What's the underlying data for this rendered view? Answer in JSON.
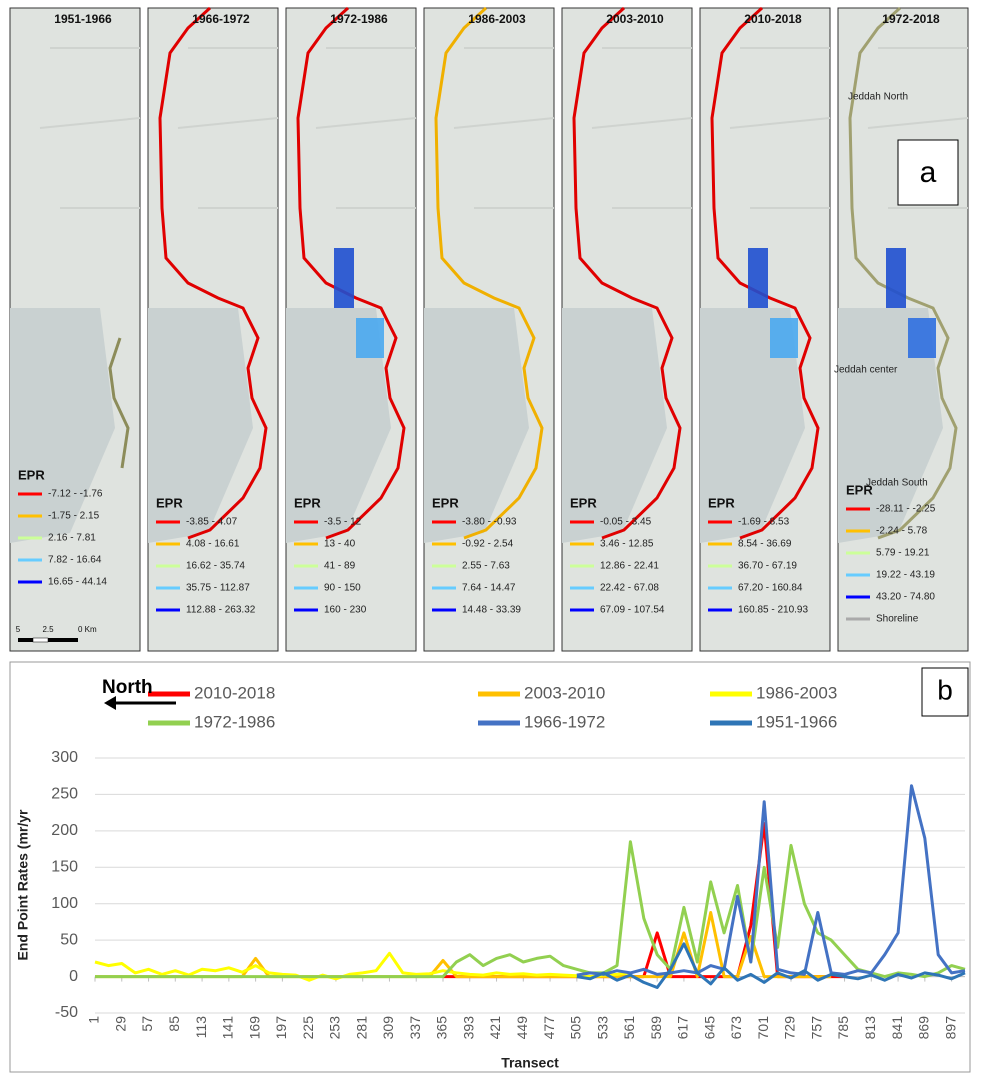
{
  "panel_a": {
    "label": "a",
    "maps": [
      {
        "title": "1951-1966",
        "legend_title": "EPR",
        "legend": [
          {
            "label": "-7.12 - -1.76",
            "color": "#ff0000"
          },
          {
            "label": "-1.75 - 2.15",
            "color": "#ffc000"
          },
          {
            "label": "2.16 - 7.81",
            "color": "#ccff99"
          },
          {
            "label": "7.82 - 16.64",
            "color": "#66ccff"
          },
          {
            "label": "16.65 - 44.14",
            "color": "#0000ff"
          }
        ],
        "scale": [
          "5",
          "2.5",
          "0 Km"
        ]
      },
      {
        "title": "1966-1972",
        "legend_title": "EPR",
        "legend": [
          {
            "label": "-3.85 - 4.07",
            "color": "#ff0000"
          },
          {
            "label": "4.08 - 16.61",
            "color": "#ffc000"
          },
          {
            "label": "16.62 - 35.74",
            "color": "#ccff99"
          },
          {
            "label": "35.75 - 112.87",
            "color": "#66ccff"
          },
          {
            "label": "112.88 - 263.32",
            "color": "#0000ff"
          }
        ]
      },
      {
        "title": "1972-1986",
        "legend_title": "EPR",
        "legend": [
          {
            "label": "-3.5 - 12",
            "color": "#ff0000"
          },
          {
            "label": "13 - 40",
            "color": "#ffc000"
          },
          {
            "label": "41 - 89",
            "color": "#ccff99"
          },
          {
            "label": "90 - 150",
            "color": "#66ccff"
          },
          {
            "label": "160 - 230",
            "color": "#0000ff"
          }
        ]
      },
      {
        "title": "1986-2003",
        "legend_title": "EPR",
        "legend": [
          {
            "label": "-3.80 - -0.93",
            "color": "#ff0000"
          },
          {
            "label": "-0.92 - 2.54",
            "color": "#ffc000"
          },
          {
            "label": "2.55 - 7.63",
            "color": "#ccff99"
          },
          {
            "label": "7.64 - 14.47",
            "color": "#66ccff"
          },
          {
            "label": "14.48 - 33.39",
            "color": "#0000ff"
          }
        ]
      },
      {
        "title": "2003-2010",
        "legend_title": "EPR",
        "legend": [
          {
            "label": "-0.05 - 3.45",
            "color": "#ff0000"
          },
          {
            "label": "3.46 - 12.85",
            "color": "#ffc000"
          },
          {
            "label": "12.86 - 22.41",
            "color": "#ccff99"
          },
          {
            "label": "22.42 - 67.08",
            "color": "#66ccff"
          },
          {
            "label": "67.09 - 107.54",
            "color": "#0000ff"
          }
        ]
      },
      {
        "title": "2010-2018",
        "legend_title": "EPR",
        "legend": [
          {
            "label": "-1.69 - 8.53",
            "color": "#ff0000"
          },
          {
            "label": "8.54 - 36.69",
            "color": "#ffc000"
          },
          {
            "label": "36.70 - 67.19",
            "color": "#ccff99"
          },
          {
            "label": "67.20 - 160.84",
            "color": "#66ccff"
          },
          {
            "label": "160.85 - 210.93",
            "color": "#0000ff"
          }
        ]
      },
      {
        "title": "1972-2018",
        "legend_title": "EPR",
        "legend": [
          {
            "label": "-28.11 - -2.25",
            "color": "#ff0000"
          },
          {
            "label": "-2.24 - 5.78",
            "color": "#ffc000"
          },
          {
            "label": "5.79 - 19.21",
            "color": "#ccff99"
          },
          {
            "label": "19.22 - 43.19",
            "color": "#66ccff"
          },
          {
            "label": "43.20 - 74.80",
            "color": "#0000ff"
          },
          {
            "label": "Shoreline",
            "color": "#aaaaaa"
          }
        ],
        "places": [
          "Jeddah North",
          "Jeddah center",
          "Jeddah South"
        ]
      }
    ]
  },
  "chart_data": {
    "type": "line",
    "panel_label": "b",
    "annotation": "North",
    "x_label": "Transect",
    "y_label": "End Point Rates (mr/yr",
    "x": [
      1,
      15,
      29,
      43,
      57,
      71,
      85,
      99,
      113,
      127,
      141,
      155,
      169,
      183,
      197,
      211,
      225,
      239,
      253,
      267,
      281,
      295,
      309,
      323,
      337,
      351,
      365,
      379,
      393,
      407,
      421,
      435,
      449,
      463,
      477,
      491,
      505,
      519,
      533,
      547,
      561,
      575,
      589,
      603,
      617,
      631,
      645,
      659,
      673,
      687,
      701,
      715,
      729,
      743,
      757,
      771,
      785,
      799,
      813,
      827,
      841,
      855,
      869,
      883,
      897,
      911
    ],
    "xlim": [
      1,
      911
    ],
    "xticks": [
      1,
      29,
      57,
      85,
      113,
      141,
      169,
      197,
      225,
      253,
      281,
      309,
      337,
      365,
      393,
      421,
      449,
      477,
      505,
      533,
      561,
      589,
      617,
      645,
      673,
      701,
      729,
      757,
      785,
      813,
      841,
      869,
      897
    ],
    "ylim": [
      -50,
      300
    ],
    "yticks": [
      -50,
      0,
      50,
      100,
      150,
      200,
      250,
      300
    ],
    "grid": true,
    "series": [
      {
        "name": "2010-2018",
        "color": "#ff0000",
        "values": [
          null,
          null,
          null,
          null,
          null,
          null,
          null,
          null,
          null,
          null,
          null,
          null,
          null,
          null,
          null,
          null,
          null,
          null,
          null,
          null,
          null,
          null,
          null,
          null,
          null,
          null,
          0,
          0,
          0,
          0,
          0,
          0,
          0,
          0,
          0,
          0,
          0,
          0,
          0,
          0,
          0,
          0,
          60,
          0,
          0,
          0,
          0,
          0,
          0,
          70,
          210,
          0,
          0,
          0,
          0,
          0,
          0,
          null,
          null,
          null,
          null,
          null,
          null,
          null,
          null,
          null
        ]
      },
      {
        "name": "2003-2010",
        "color": "#ffc000",
        "values": [
          0,
          0,
          0,
          0,
          0,
          0,
          0,
          0,
          0,
          0,
          0,
          0,
          25,
          0,
          0,
          0,
          0,
          0,
          0,
          0,
          0,
          0,
          0,
          0,
          0,
          0,
          22,
          0,
          0,
          0,
          0,
          0,
          0,
          0,
          0,
          0,
          0,
          0,
          0,
          0,
          0,
          0,
          0,
          0,
          60,
          0,
          88,
          0,
          0,
          55,
          0,
          0,
          0,
          0,
          0,
          0,
          null,
          null,
          null,
          null,
          null,
          null,
          null,
          null,
          null,
          null
        ]
      },
      {
        "name": "1986-2003",
        "color": "#ffff00",
        "values": [
          20,
          15,
          18,
          5,
          10,
          3,
          8,
          2,
          10,
          8,
          12,
          6,
          15,
          5,
          3,
          2,
          -5,
          2,
          -3,
          3,
          5,
          8,
          32,
          5,
          3,
          4,
          8,
          5,
          3,
          2,
          5,
          3,
          4,
          2,
          3,
          2,
          1,
          0,
          2,
          3,
          5,
          null,
          null,
          null,
          null,
          null,
          null,
          null,
          null,
          null,
          null,
          null,
          null,
          null,
          null,
          null,
          null,
          null,
          null,
          null,
          null,
          null,
          null,
          null,
          null,
          null
        ]
      },
      {
        "name": "1972-1986",
        "color": "#92d050",
        "values": [
          0,
          0,
          0,
          0,
          0,
          0,
          0,
          0,
          0,
          0,
          0,
          0,
          0,
          0,
          0,
          0,
          0,
          0,
          0,
          0,
          0,
          0,
          0,
          0,
          0,
          0,
          0,
          20,
          30,
          15,
          25,
          30,
          20,
          25,
          28,
          15,
          10,
          5,
          5,
          15,
          185,
          80,
          30,
          10,
          95,
          20,
          130,
          60,
          125,
          20,
          150,
          40,
          180,
          100,
          60,
          50,
          30,
          10,
          5,
          0,
          5,
          3,
          0,
          5,
          15,
          10
        ]
      },
      {
        "name": "1966-1972",
        "color": "#4472c4",
        "values": [
          null,
          null,
          null,
          null,
          null,
          null,
          null,
          null,
          null,
          null,
          null,
          null,
          null,
          null,
          null,
          null,
          null,
          null,
          null,
          null,
          null,
          null,
          null,
          null,
          null,
          null,
          null,
          null,
          null,
          null,
          null,
          null,
          null,
          null,
          null,
          null,
          2,
          5,
          3,
          8,
          5,
          10,
          3,
          5,
          8,
          5,
          15,
          10,
          110,
          20,
          240,
          10,
          5,
          3,
          88,
          5,
          3,
          8,
          5,
          30,
          60,
          262,
          190,
          30,
          5,
          8
        ]
      },
      {
        "name": "1951-1966",
        "color": "#2e75b6",
        "values": [
          null,
          null,
          null,
          null,
          null,
          null,
          null,
          null,
          null,
          null,
          null,
          null,
          null,
          null,
          null,
          null,
          null,
          null,
          null,
          null,
          null,
          null,
          null,
          null,
          null,
          null,
          null,
          null,
          null,
          null,
          null,
          null,
          null,
          null,
          null,
          null,
          0,
          -3,
          5,
          -5,
          2,
          -8,
          -15,
          10,
          45,
          5,
          -10,
          12,
          -5,
          3,
          -8,
          5,
          -2,
          8,
          -5,
          3,
          0,
          -3,
          2,
          -5,
          3,
          -2,
          5,
          2,
          -3,
          5
        ]
      }
    ]
  }
}
